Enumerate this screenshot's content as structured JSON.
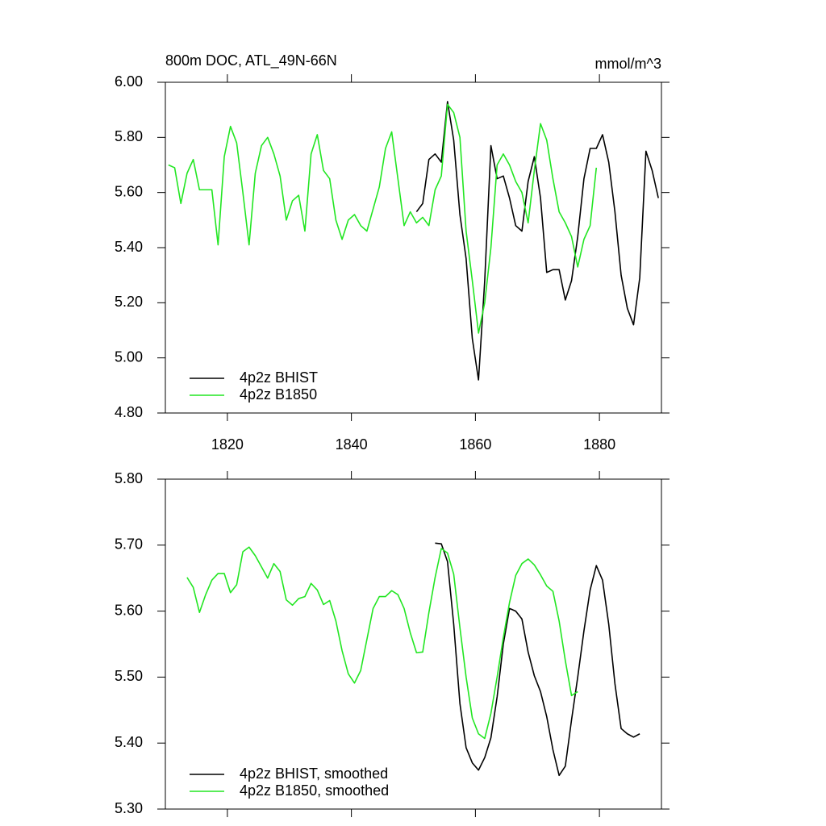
{
  "chart_data": [
    {
      "type": "line",
      "title": "800m DOC, ATL_49N-66N",
      "units": "mmol/m^3",
      "xlim": [
        1810,
        1890
      ],
      "xticks": [
        1820,
        1840,
        1860,
        1880
      ],
      "xtick_labels": true,
      "ylim": [
        4.8,
        6.0
      ],
      "yticks": [
        {
          "value": 4.8,
          "label": "4.80"
        },
        {
          "value": 5.0,
          "label": "5.00"
        },
        {
          "value": 5.2,
          "label": "5.20"
        },
        {
          "value": 5.4,
          "label": "5.40"
        },
        {
          "value": 5.6,
          "label": "5.60"
        },
        {
          "value": 5.8,
          "label": "5.80"
        },
        {
          "value": 6.0,
          "label": "6.00"
        }
      ],
      "legend": "lower-left",
      "series": [
        {
          "name": "4p2z BHIST",
          "color": "#000000",
          "x": [
            1850.5,
            1851.5,
            1852.5,
            1853.5,
            1854.5,
            1855.5,
            1856.5,
            1857.5,
            1858.5,
            1859.5,
            1860.5,
            1861.5,
            1862.5,
            1863.5,
            1864.5,
            1865.5,
            1866.5,
            1867.5,
            1868.5,
            1869.5,
            1870.5,
            1871.5,
            1872.5,
            1873.5,
            1874.5,
            1875.5,
            1876.5,
            1877.5,
            1878.5,
            1879.5,
            1880.5,
            1881.5,
            1882.5,
            1883.5,
            1884.5,
            1885.5,
            1886.5,
            1887.5,
            1888.5,
            1889.5
          ],
          "values": [
            5.53,
            5.56,
            5.72,
            5.74,
            5.71,
            5.93,
            5.79,
            5.52,
            5.36,
            5.07,
            4.92,
            5.28,
            5.77,
            5.65,
            5.66,
            5.58,
            5.48,
            5.46,
            5.64,
            5.73,
            5.58,
            5.31,
            5.32,
            5.32,
            5.21,
            5.28,
            5.44,
            5.65,
            5.76,
            5.76,
            5.81,
            5.71,
            5.53,
            5.3,
            5.18,
            5.12,
            5.29,
            5.75,
            5.68,
            5.58
          ]
        },
        {
          "name": "4p2z B1850",
          "color": "#22e622",
          "x": [
            1810.5,
            1811.5,
            1812.5,
            1813.5,
            1814.5,
            1815.5,
            1816.5,
            1817.5,
            1818.5,
            1819.5,
            1820.5,
            1821.5,
            1822.5,
            1823.5,
            1824.5,
            1825.5,
            1826.5,
            1827.5,
            1828.5,
            1829.5,
            1830.5,
            1831.5,
            1832.5,
            1833.5,
            1834.5,
            1835.5,
            1836.5,
            1837.5,
            1838.5,
            1839.5,
            1840.5,
            1841.5,
            1842.5,
            1843.5,
            1844.5,
            1845.5,
            1846.5,
            1847.5,
            1848.5,
            1849.5,
            1850.5,
            1851.5,
            1852.5,
            1853.5,
            1854.5,
            1855.5,
            1856.5,
            1857.5,
            1858.5,
            1859.5,
            1860.5,
            1861.5,
            1862.5,
            1863.5,
            1864.5,
            1865.5,
            1866.5,
            1867.5,
            1868.5,
            1869.5,
            1870.5,
            1871.5,
            1872.5,
            1873.5,
            1874.5,
            1875.5,
            1876.5,
            1877.5,
            1878.5,
            1879.5
          ],
          "values": [
            5.7,
            5.69,
            5.56,
            5.67,
            5.72,
            5.61,
            5.61,
            5.61,
            5.41,
            5.73,
            5.84,
            5.78,
            5.6,
            5.41,
            5.67,
            5.77,
            5.8,
            5.74,
            5.66,
            5.5,
            5.57,
            5.59,
            5.46,
            5.74,
            5.81,
            5.68,
            5.65,
            5.5,
            5.43,
            5.5,
            5.52,
            5.48,
            5.46,
            5.54,
            5.62,
            5.76,
            5.82,
            5.65,
            5.48,
            5.53,
            5.49,
            5.51,
            5.48,
            5.61,
            5.66,
            5.92,
            5.89,
            5.8,
            5.46,
            5.28,
            5.09,
            5.2,
            5.4,
            5.7,
            5.74,
            5.7,
            5.64,
            5.6,
            5.49,
            5.68,
            5.85,
            5.79,
            5.65,
            5.53,
            5.49,
            5.44,
            5.33,
            5.43,
            5.48,
            5.69
          ]
        }
      ]
    },
    {
      "type": "line",
      "xlim": [
        1810,
        1890
      ],
      "xticks": [
        1820,
        1840,
        1860,
        1880
      ],
      "xtick_labels": false,
      "ylim": [
        5.3,
        5.8
      ],
      "yticks": [
        {
          "value": 5.3,
          "label": "5.30"
        },
        {
          "value": 5.4,
          "label": "5.40"
        },
        {
          "value": 5.5,
          "label": "5.50"
        },
        {
          "value": 5.6,
          "label": "5.60"
        },
        {
          "value": 5.7,
          "label": "5.70"
        },
        {
          "value": 5.8,
          "label": "5.80"
        }
      ],
      "legend": "lower-left",
      "series": [
        {
          "name": "4p2z BHIST, smoothed",
          "color": "#000000",
          "x": [
            1853.5,
            1854.5,
            1855.5,
            1856.5,
            1857.5,
            1858.5,
            1859.5,
            1860.5,
            1861.5,
            1862.5,
            1863.5,
            1864.5,
            1865.5,
            1866.5,
            1867.5,
            1868.5,
            1869.5,
            1870.5,
            1871.5,
            1872.5,
            1873.5,
            1874.5,
            1875.5,
            1876.5,
            1877.5,
            1878.5,
            1879.5,
            1880.5,
            1881.5,
            1882.5,
            1883.5,
            1884.5,
            1885.5,
            1886.5
          ],
          "values": [
            5.703,
            5.702,
            5.675,
            5.58,
            5.46,
            5.393,
            5.37,
            5.359,
            5.378,
            5.408,
            5.47,
            5.55,
            5.604,
            5.6,
            5.588,
            5.538,
            5.502,
            5.478,
            5.44,
            5.39,
            5.351,
            5.365,
            5.435,
            5.5,
            5.57,
            5.632,
            5.669,
            5.647,
            5.58,
            5.49,
            5.422,
            5.414,
            5.409,
            5.414
          ]
        },
        {
          "name": "4p2z B1850, smoothed",
          "color": "#22e622",
          "x": [
            1813.5,
            1814.5,
            1815.5,
            1816.5,
            1817.5,
            1818.5,
            1819.5,
            1820.5,
            1821.5,
            1822.5,
            1823.5,
            1824.5,
            1825.5,
            1826.5,
            1827.5,
            1828.5,
            1829.5,
            1830.5,
            1831.5,
            1832.5,
            1833.5,
            1834.5,
            1835.5,
            1836.5,
            1837.5,
            1838.5,
            1839.5,
            1840.5,
            1841.5,
            1842.5,
            1843.5,
            1844.5,
            1845.5,
            1846.5,
            1847.5,
            1848.5,
            1849.5,
            1850.5,
            1851.5,
            1852.5,
            1853.5,
            1854.5,
            1855.5,
            1856.5,
            1857.5,
            1858.5,
            1859.5,
            1860.5,
            1861.5,
            1862.5,
            1863.5,
            1864.5,
            1865.5,
            1866.5,
            1867.5,
            1868.5,
            1869.5,
            1870.5,
            1871.5,
            1872.5,
            1873.5,
            1874.5,
            1875.5,
            1876.5
          ],
          "values": [
            5.651,
            5.636,
            5.598,
            5.625,
            5.647,
            5.657,
            5.657,
            5.628,
            5.64,
            5.69,
            5.697,
            5.684,
            5.667,
            5.65,
            5.672,
            5.66,
            5.617,
            5.609,
            5.619,
            5.622,
            5.642,
            5.632,
            5.61,
            5.616,
            5.585,
            5.54,
            5.505,
            5.491,
            5.51,
            5.557,
            5.604,
            5.622,
            5.622,
            5.631,
            5.625,
            5.604,
            5.567,
            5.537,
            5.538,
            5.598,
            5.651,
            5.695,
            5.688,
            5.656,
            5.575,
            5.5,
            5.438,
            5.414,
            5.407,
            5.445,
            5.5,
            5.56,
            5.613,
            5.654,
            5.672,
            5.679,
            5.67,
            5.655,
            5.638,
            5.63,
            5.585,
            5.525,
            5.472,
            5.478
          ]
        }
      ]
    }
  ]
}
